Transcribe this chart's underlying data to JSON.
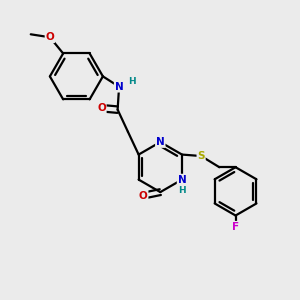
{
  "background_color": "#ebebeb",
  "bond_color": "#000000",
  "atom_colors": {
    "N": "#0000cc",
    "O": "#cc0000",
    "S": "#aaaa00",
    "F": "#cc00cc",
    "H": "#008888",
    "C": "#000000"
  },
  "figsize": [
    3.0,
    3.0
  ],
  "dpi": 100
}
